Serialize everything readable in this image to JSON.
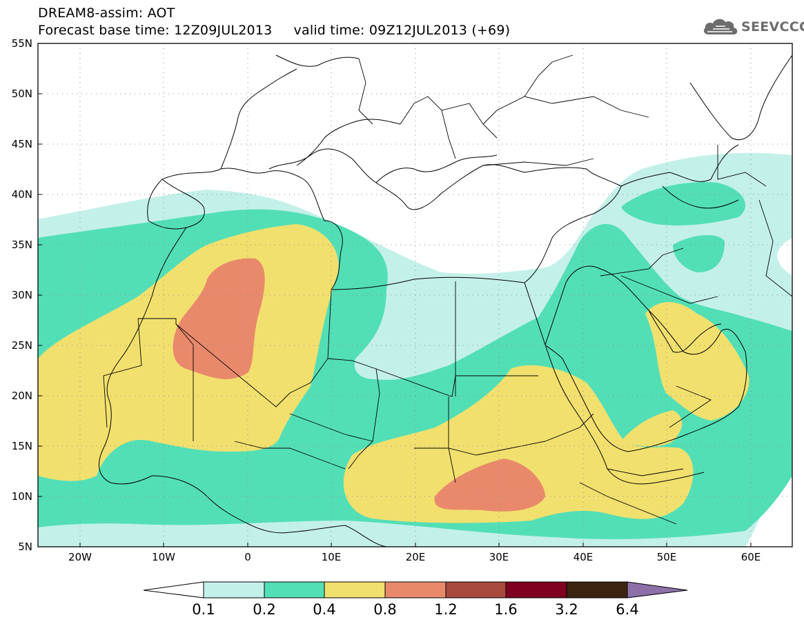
{
  "header": {
    "line1": "DREAM8-assim: AOT",
    "line2": "Forecast base time: 12Z09JUL2013     valid time: 09Z12JUL2013 (+69)"
  },
  "logo": {
    "text": "SEEVCCC",
    "icon": "cloud-icon"
  },
  "map": {
    "lat_labels": [
      "55N",
      "50N",
      "45N",
      "40N",
      "35N",
      "30N",
      "25N",
      "20N",
      "15N",
      "10N",
      "5N"
    ],
    "lon_labels": [
      "20W",
      "10W",
      "0",
      "10E",
      "20E",
      "30E",
      "40E",
      "50E",
      "60E"
    ],
    "lat_range": [
      5,
      55
    ],
    "lon_range": [
      -25,
      65
    ],
    "grid": true
  },
  "colorbar": {
    "labels": [
      "0.1",
      "0.2",
      "0.4",
      "0.8",
      "1.2",
      "1.6",
      "3.2",
      "6.4"
    ],
    "colors": [
      "#c4f0ea",
      "#53dfb6",
      "#f2e06e",
      "#e9896b",
      "#a84a3e",
      "#800022",
      "#3b2310",
      "#8e6fa8"
    ]
  }
}
